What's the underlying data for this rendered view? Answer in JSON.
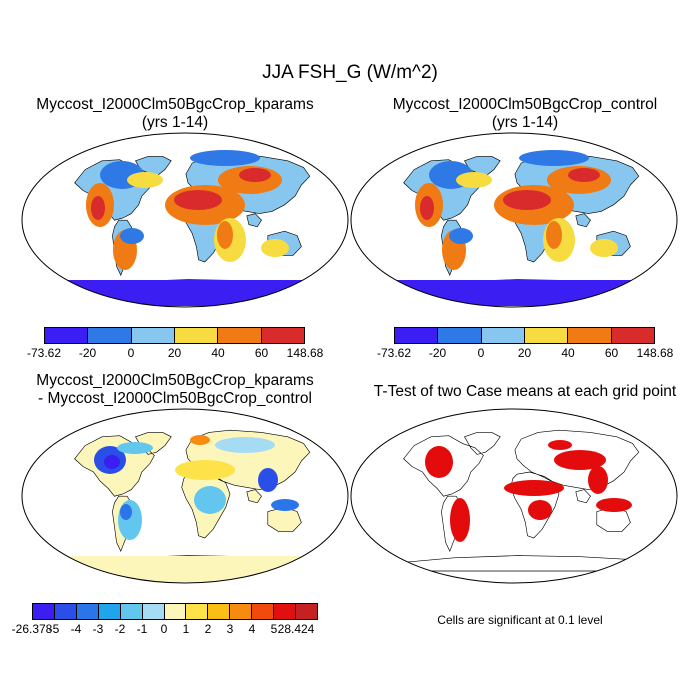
{
  "title": "JJA FSH_G (W/m^2)",
  "panels": {
    "kparams": {
      "title_line1": "Myccost_I2000Clm50BgcCrop_kparams",
      "title_line2": "(yrs 1-14)"
    },
    "control": {
      "title_line1": "Myccost_I2000Clm50BgcCrop_control",
      "title_line2": "(yrs 1-14)"
    },
    "difference": {
      "title_line1": "Myccost_I2000Clm50BgcCrop_kparams",
      "title_line2": "- Myccost_I2000Clm50BgcCrop_control"
    },
    "ttest": {
      "title_line1": "T-Test of two Case means at each grid point",
      "note": "Cells are significant at 0.1 level"
    }
  },
  "colorbar_main": {
    "labels": [
      "-73.62",
      "-20",
      "0",
      "20",
      "40",
      "60",
      "148.68"
    ],
    "colors": [
      "#3a1ef2",
      "#2e79e6",
      "#87c6ee",
      "#f6dc40",
      "#f07a13",
      "#d92b2b"
    ]
  },
  "colorbar_diff": {
    "labels": [
      "-26.378",
      "-5",
      "-4",
      "-3",
      "-2",
      "-1",
      "0",
      "1",
      "2",
      "3",
      "4",
      "5",
      "28.424"
    ],
    "colors": [
      "#3a1ef2",
      "#2a4fe8",
      "#2a76e8",
      "#1ea5ec",
      "#62c6ef",
      "#a6dcf3",
      "#fcf6bb",
      "#fde24a",
      "#fbbe14",
      "#f78b10",
      "#f04a0c",
      "#e10f0f",
      "#c42222"
    ]
  },
  "significance_color": "#e30b0b"
}
